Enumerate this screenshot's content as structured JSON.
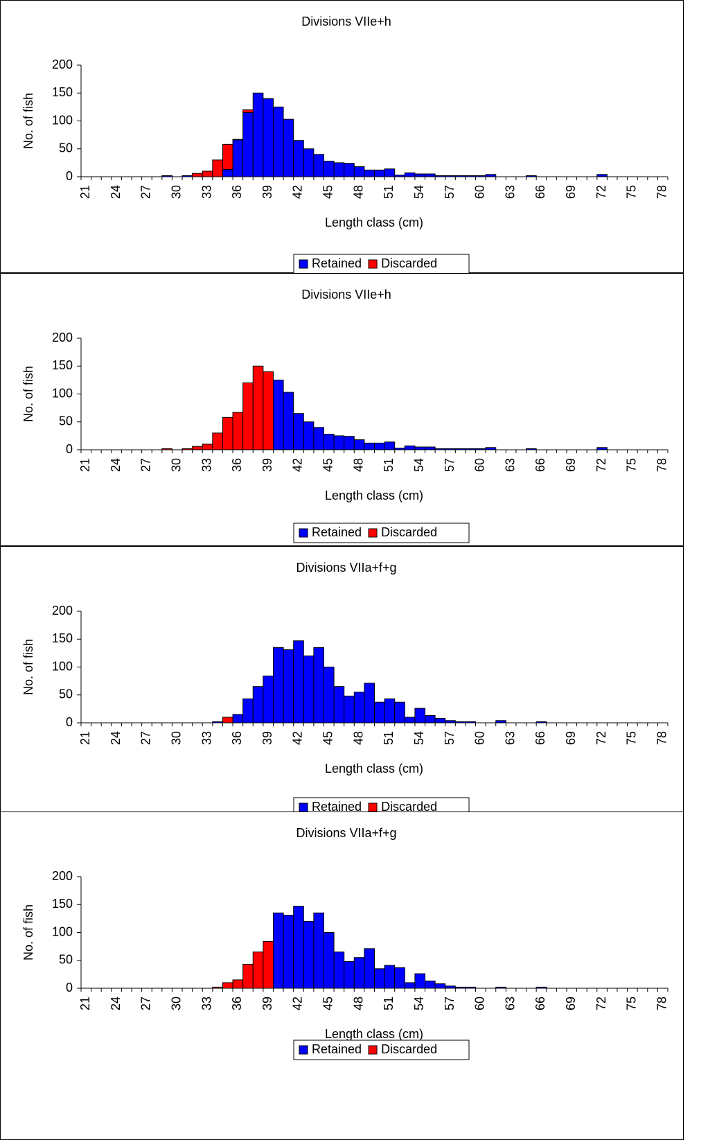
{
  "chart_data": [
    {
      "type": "bar",
      "stacked": true,
      "title": "Divisions VIIe+h",
      "y_label": "No. of fish",
      "x_label": "Length class (cm)",
      "categories": [
        "21",
        null,
        null,
        "24",
        null,
        null,
        "27",
        null,
        null,
        "30",
        null,
        null,
        "33",
        null,
        null,
        "36",
        null,
        null,
        "39",
        null,
        null,
        "42",
        null,
        null,
        "45",
        null,
        null,
        "48",
        null,
        null,
        "51",
        null,
        null,
        "54",
        null,
        null,
        "57",
        null,
        null,
        "60",
        null,
        null,
        "63",
        null,
        null,
        "66",
        null,
        null,
        "69",
        null,
        null,
        "72",
        null,
        null,
        "75",
        null,
        null,
        "78"
      ],
      "series": [
        {
          "name": "Retained",
          "color": "#0000ff",
          "values": [
            0,
            0,
            0,
            0,
            0,
            0,
            0,
            0,
            2,
            0,
            2,
            0,
            0,
            0,
            13,
            66,
            115,
            150,
            140,
            125,
            103,
            65,
            50,
            40,
            28,
            25,
            24,
            18,
            12,
            12,
            14,
            3,
            7,
            5,
            5,
            2,
            2,
            2,
            2,
            2,
            4,
            0,
            0,
            0,
            2,
            0,
            0,
            0,
            0,
            0,
            0,
            4,
            0,
            0,
            0,
            0,
            0,
            0
          ]
        },
        {
          "name": "Discarded",
          "color": "#ff0000",
          "values": [
            0,
            0,
            0,
            0,
            0,
            0,
            0,
            0,
            0,
            0,
            0,
            6,
            10,
            30,
            45,
            1,
            5,
            0,
            0,
            0,
            0,
            0,
            0,
            0,
            0,
            0,
            0,
            0,
            0,
            0,
            0,
            0,
            0,
            0,
            0,
            0,
            0,
            0,
            0,
            0,
            0,
            0,
            0,
            0,
            0,
            0,
            0,
            0,
            0,
            0,
            0,
            0,
            0,
            0,
            0,
            0,
            0,
            0
          ]
        }
      ],
      "ylim": [
        0,
        200
      ],
      "yticks": [
        0,
        50,
        100,
        150,
        200
      ]
    },
    {
      "type": "bar",
      "stacked": true,
      "title": "Divisions VIIe+h",
      "y_label": "No. of fish",
      "x_label": "Length class (cm)",
      "categories": [
        "21",
        null,
        null,
        "24",
        null,
        null,
        "27",
        null,
        null,
        "30",
        null,
        null,
        "33",
        null,
        null,
        "36",
        null,
        null,
        "39",
        null,
        null,
        "42",
        null,
        null,
        "45",
        null,
        null,
        "48",
        null,
        null,
        "51",
        null,
        null,
        "54",
        null,
        null,
        "57",
        null,
        null,
        "60",
        null,
        null,
        "63",
        null,
        null,
        "66",
        null,
        null,
        "69",
        null,
        null,
        "72",
        null,
        null,
        "75",
        null,
        null,
        "78"
      ],
      "series": [
        {
          "name": "Retained",
          "color": "#0000ff",
          "values": [
            0,
            0,
            0,
            0,
            0,
            0,
            0,
            0,
            0,
            0,
            0,
            0,
            0,
            0,
            0,
            0,
            0,
            0,
            0,
            125,
            103,
            65,
            50,
            40,
            28,
            25,
            24,
            18,
            12,
            12,
            14,
            3,
            7,
            5,
            5,
            2,
            2,
            2,
            2,
            2,
            4,
            0,
            0,
            0,
            2,
            0,
            0,
            0,
            0,
            0,
            0,
            4,
            0,
            0,
            0,
            0,
            0,
            0
          ]
        },
        {
          "name": "Discarded",
          "color": "#ff0000",
          "values": [
            0,
            0,
            0,
            0,
            0,
            0,
            0,
            0,
            2,
            0,
            2,
            6,
            10,
            30,
            58,
            67,
            120,
            150,
            140,
            0,
            0,
            0,
            0,
            0,
            0,
            0,
            0,
            0,
            0,
            0,
            0,
            0,
            0,
            0,
            0,
            0,
            0,
            0,
            0,
            0,
            0,
            0,
            0,
            0,
            0,
            0,
            0,
            0,
            0,
            0,
            0,
            0,
            0,
            0,
            0,
            0,
            0,
            0
          ]
        }
      ],
      "ylim": [
        0,
        200
      ],
      "yticks": [
        0,
        50,
        100,
        150,
        200
      ]
    },
    {
      "type": "bar",
      "stacked": true,
      "title": "Divisions VIIa+f+g",
      "y_label": "No. of fish",
      "x_label": "Length class (cm)",
      "categories": [
        "21",
        null,
        null,
        "24",
        null,
        null,
        "27",
        null,
        null,
        "30",
        null,
        null,
        "33",
        null,
        null,
        "36",
        null,
        null,
        "39",
        null,
        null,
        "42",
        null,
        null,
        "45",
        null,
        null,
        "48",
        null,
        null,
        "51",
        null,
        null,
        "54",
        null,
        null,
        "57",
        null,
        null,
        "60",
        null,
        null,
        "63",
        null,
        null,
        "66",
        null,
        null,
        "69",
        null,
        null,
        "72",
        null,
        null,
        "75",
        null,
        null,
        "78"
      ],
      "series": [
        {
          "name": "Retained",
          "color": "#0000ff",
          "values": [
            0,
            0,
            0,
            0,
            0,
            0,
            0,
            0,
            0,
            0,
            0,
            0,
            0,
            2,
            0,
            15,
            43,
            65,
            84,
            135,
            131,
            147,
            120,
            135,
            100,
            65,
            48,
            55,
            71,
            37,
            43,
            37,
            10,
            26,
            13,
            8,
            4,
            2,
            2,
            0,
            0,
            4,
            0,
            0,
            0,
            2,
            0,
            0,
            0,
            0,
            0,
            0,
            0,
            0,
            0,
            0,
            0,
            0
          ]
        },
        {
          "name": "Discarded",
          "color": "#ff0000",
          "values": [
            0,
            0,
            0,
            0,
            0,
            0,
            0,
            0,
            0,
            0,
            0,
            0,
            0,
            0,
            10,
            0,
            0,
            0,
            0,
            0,
            0,
            0,
            0,
            0,
            0,
            0,
            0,
            0,
            0,
            0,
            0,
            0,
            0,
            0,
            0,
            0,
            0,
            0,
            0,
            0,
            0,
            0,
            0,
            0,
            0,
            0,
            0,
            0,
            0,
            0,
            0,
            0,
            0,
            0,
            0,
            0,
            0,
            0
          ]
        }
      ],
      "ylim": [
        0,
        200
      ],
      "yticks": [
        0,
        50,
        100,
        150,
        200
      ]
    },
    {
      "type": "bar",
      "stacked": true,
      "title": "Divisions VIIa+f+g",
      "y_label": "No. of fish",
      "x_label": "Length class (cm)",
      "categories": [
        "21",
        null,
        null,
        "24",
        null,
        null,
        "27",
        null,
        null,
        "30",
        null,
        null,
        "33",
        null,
        null,
        "36",
        null,
        null,
        "39",
        null,
        null,
        "42",
        null,
        null,
        "45",
        null,
        null,
        "48",
        null,
        null,
        "51",
        null,
        null,
        "54",
        null,
        null,
        "57",
        null,
        null,
        "60",
        null,
        null,
        "63",
        null,
        null,
        "66",
        null,
        null,
        "69",
        null,
        null,
        "72",
        null,
        null,
        "75",
        null,
        null,
        "78"
      ],
      "series": [
        {
          "name": "Retained",
          "color": "#0000ff",
          "values": [
            0,
            0,
            0,
            0,
            0,
            0,
            0,
            0,
            0,
            0,
            0,
            0,
            0,
            0,
            0,
            0,
            0,
            0,
            0,
            135,
            131,
            147,
            120,
            135,
            100,
            65,
            48,
            55,
            71,
            35,
            41,
            37,
            10,
            26,
            13,
            8,
            4,
            2,
            2,
            0,
            0,
            2,
            0,
            0,
            0,
            2,
            0,
            0,
            0,
            0,
            0,
            0,
            0,
            0,
            0,
            0,
            0,
            0
          ]
        },
        {
          "name": "Discarded",
          "color": "#ff0000",
          "values": [
            0,
            0,
            0,
            0,
            0,
            0,
            0,
            0,
            0,
            0,
            0,
            0,
            0,
            2,
            10,
            15,
            43,
            65,
            84,
            0,
            0,
            0,
            0,
            0,
            0,
            0,
            0,
            0,
            0,
            0,
            0,
            0,
            0,
            0,
            0,
            0,
            0,
            0,
            0,
            0,
            0,
            0,
            0,
            0,
            0,
            0,
            0,
            0,
            0,
            0,
            0,
            0,
            0,
            0,
            0,
            0,
            0,
            0
          ]
        }
      ],
      "ylim": [
        0,
        200
      ],
      "yticks": [
        0,
        50,
        100,
        150,
        200
      ]
    }
  ]
}
